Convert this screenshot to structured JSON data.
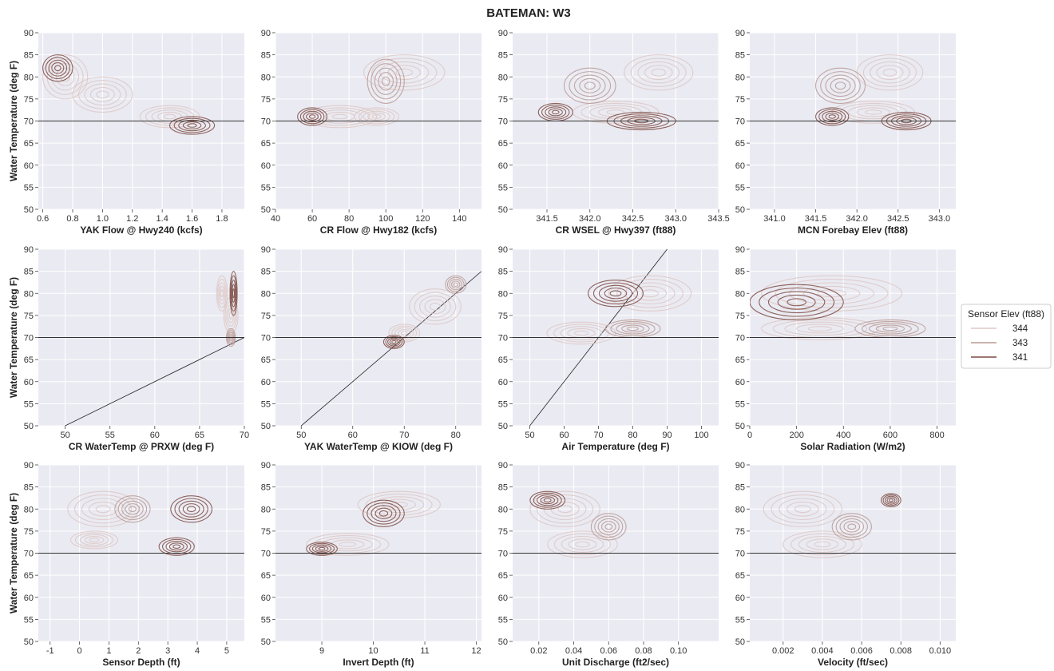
{
  "chart_data": {
    "type": "contour",
    "title": "BATEMAN: W3",
    "ylabel": "Water Temperature (deg F)",
    "ylim": [
      50,
      90
    ],
    "yticks": [
      50,
      55,
      60,
      65,
      70,
      75,
      80,
      85,
      90
    ],
    "reference_y": 70,
    "grid": true,
    "legend": {
      "title": "Sensor Elev (ft88)",
      "placement": "right",
      "entries": [
        {
          "label": "344",
          "color": "#ddc8c4"
        },
        {
          "label": "343",
          "color": "#b99a94"
        },
        {
          "label": "341",
          "color": "#7d4b43"
        }
      ]
    },
    "panels": [
      {
        "xlabel": "YAK Flow @ Hwy240 (kcfs)",
        "xlim": [
          0.57,
          1.95
        ],
        "xticks": [
          "0.6",
          "0.8",
          "1.0",
          "1.2",
          "1.4",
          "1.6",
          "1.8"
        ],
        "clusters": [
          [
            0.75,
            80,
            0.15,
            5,
            0
          ],
          [
            1.0,
            76,
            0.2,
            4,
            0
          ],
          [
            1.45,
            71,
            0.2,
            2.5,
            0
          ],
          [
            0.7,
            82,
            0.1,
            3,
            2
          ],
          [
            1.6,
            69,
            0.15,
            2,
            2
          ]
        ]
      },
      {
        "xlabel": "CR Flow @ Hwy182 (kcfs)",
        "xlim": [
          40,
          152
        ],
        "xticks": [
          "40",
          "60",
          "80",
          "100",
          "120",
          "140"
        ],
        "clusters": [
          [
            110,
            81,
            22,
            4,
            0
          ],
          [
            75,
            71,
            20,
            2.5,
            0
          ],
          [
            95,
            71,
            12,
            2,
            0
          ],
          [
            100,
            79,
            10,
            5,
            1
          ],
          [
            60,
            71,
            8,
            2,
            2
          ]
        ]
      },
      {
        "xlabel": "CR WSEL @ Hwy397 (ft88)",
        "xlim": [
          341.1,
          343.5
        ],
        "xticks": [
          "341.5",
          "342.0",
          "342.5",
          "343.0",
          "343.5"
        ],
        "clusters": [
          [
            342.8,
            81,
            0.4,
            4,
            0
          ],
          [
            342.3,
            72,
            0.5,
            2.5,
            0
          ],
          [
            342.0,
            78,
            0.3,
            4,
            1
          ],
          [
            341.6,
            72,
            0.2,
            2,
            2
          ],
          [
            342.6,
            70,
            0.4,
            2,
            2
          ]
        ]
      },
      {
        "xlabel": "MCN Forebay Elev (ft88)",
        "xlim": [
          340.7,
          343.2
        ],
        "xticks": [
          "341.0",
          "341.5",
          "342.0",
          "342.5",
          "343.0"
        ],
        "clusters": [
          [
            342.4,
            81,
            0.4,
            4,
            0
          ],
          [
            342.2,
            72,
            0.5,
            2.5,
            0
          ],
          [
            341.8,
            78,
            0.3,
            4,
            1
          ],
          [
            341.7,
            71,
            0.2,
            2,
            2
          ],
          [
            342.6,
            70,
            0.3,
            2,
            2
          ]
        ]
      },
      {
        "xlabel": "CR WaterTemp @ PRXW (deg F)",
        "xlim": [
          47,
          70
        ],
        "xticks": [
          "50",
          "55",
          "60",
          "65",
          "70"
        ],
        "diagonal": [
          [
            50,
            50
          ],
          [
            70,
            70
          ]
        ],
        "clusters": [
          [
            67.5,
            80,
            0.6,
            4,
            0
          ],
          [
            68.5,
            75,
            0.8,
            4,
            0
          ],
          [
            68.5,
            70,
            0.5,
            2,
            1
          ],
          [
            68.8,
            80,
            0.4,
            5,
            2
          ]
        ]
      },
      {
        "xlabel": "YAK WaterTemp @ KIOW (deg F)",
        "xlim": [
          45,
          85
        ],
        "xticks": [
          "50",
          "60",
          "70",
          "80"
        ],
        "diagonal": [
          [
            50,
            50
          ],
          [
            85,
            85
          ]
        ],
        "clusters": [
          [
            70,
            71,
            3,
            2,
            0
          ],
          [
            76,
            77,
            5,
            4,
            0
          ],
          [
            80,
            82,
            2,
            2,
            1
          ],
          [
            68,
            69,
            2,
            1.5,
            2
          ]
        ]
      },
      {
        "xlabel": "Air Temperature (deg F)",
        "xlim": [
          45,
          105
        ],
        "xticks": [
          "50",
          "60",
          "70",
          "80",
          "90",
          "100"
        ],
        "diagonal": [
          [
            50,
            50
          ],
          [
            90,
            90
          ]
        ],
        "clusters": [
          [
            85,
            80,
            12,
            4,
            0
          ],
          [
            65,
            71,
            10,
            2.5,
            0
          ],
          [
            80,
            72,
            8,
            2,
            1
          ],
          [
            75,
            80,
            8,
            3,
            2
          ]
        ]
      },
      {
        "xlabel": "Solar Radiation (W/m2)",
        "xlim": [
          0,
          880
        ],
        "xticks": [
          "0",
          "200",
          "400",
          "600",
          "800"
        ],
        "clusters": [
          [
            350,
            80,
            300,
            4,
            0
          ],
          [
            300,
            72,
            250,
            2.5,
            0
          ],
          [
            600,
            72,
            150,
            2,
            1
          ],
          [
            200,
            78,
            200,
            4,
            2
          ]
        ]
      },
      {
        "xlabel": "Sensor Depth (ft)",
        "xlim": [
          -1.4,
          5.6
        ],
        "xticks": [
          "-1",
          "0",
          "1",
          "2",
          "3",
          "4",
          "5"
        ],
        "clusters": [
          [
            0.8,
            80,
            1.2,
            4,
            0
          ],
          [
            0.5,
            73,
            0.8,
            2,
            0
          ],
          [
            3.8,
            80,
            0.7,
            3,
            2
          ],
          [
            3.3,
            71.5,
            0.6,
            2,
            2
          ],
          [
            1.8,
            80,
            0.6,
            3,
            1
          ]
        ]
      },
      {
        "xlabel": "Invert Depth (ft)",
        "xlim": [
          8.1,
          12.1
        ],
        "xticks": [
          "9",
          "10",
          "11",
          "12"
        ],
        "clusters": [
          [
            10.5,
            81,
            0.8,
            3,
            0
          ],
          [
            9.5,
            72,
            0.8,
            2.5,
            0
          ],
          [
            10.2,
            79,
            0.4,
            3,
            2
          ],
          [
            9.0,
            71,
            0.3,
            1.5,
            2
          ]
        ]
      },
      {
        "xlabel": "Unit Discharge (ft2/sec)",
        "xlim": [
          0.005,
          0.123
        ],
        "xticks": [
          "0.02",
          "0.04",
          "0.06",
          "0.08",
          "0.10"
        ],
        "clusters": [
          [
            0.035,
            80,
            0.02,
            4,
            0
          ],
          [
            0.045,
            72,
            0.02,
            3,
            0
          ],
          [
            0.025,
            82,
            0.01,
            2,
            2
          ],
          [
            0.06,
            76,
            0.01,
            3,
            1
          ]
        ]
      },
      {
        "xlabel": "Velocity (ft/sec)",
        "xlim": [
          0.0003,
          0.0108
        ],
        "xticks": [
          "0.002",
          "0.004",
          "0.006",
          "0.008",
          "0.010"
        ],
        "clusters": [
          [
            0.003,
            80,
            0.002,
            4,
            0
          ],
          [
            0.004,
            72,
            0.002,
            3,
            0
          ],
          [
            0.0075,
            82,
            0.0005,
            1.5,
            2
          ],
          [
            0.0055,
            76,
            0.001,
            3,
            1
          ]
        ]
      }
    ]
  }
}
